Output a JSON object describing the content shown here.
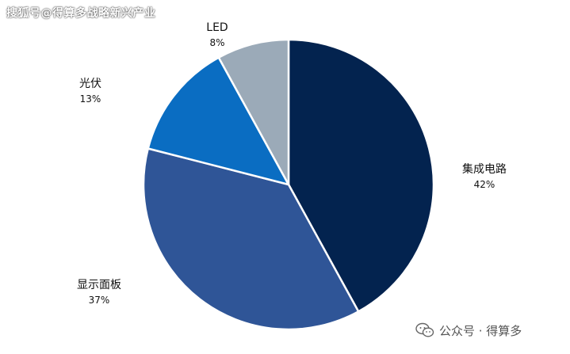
{
  "watermark_top": "搜狐号@得算多战略新兴产业",
  "watermark_bottom": "公众号 · 得算多",
  "wechat_icon": "wechat-icon",
  "chart_data": {
    "type": "pie",
    "start_angle_deg": 0,
    "direction": "clockwise",
    "slices": [
      {
        "name": "集成电路",
        "value": 42,
        "label": "42%",
        "color": "#03234f"
      },
      {
        "name": "显示面板",
        "value": 37,
        "label": "37%",
        "color": "#2f5597"
      },
      {
        "name": "光伏",
        "value": 13,
        "label": "13%",
        "color": "#0a6dc2"
      },
      {
        "name": "LED",
        "value": 8,
        "label": "8%",
        "color": "#9baab8"
      }
    ]
  }
}
